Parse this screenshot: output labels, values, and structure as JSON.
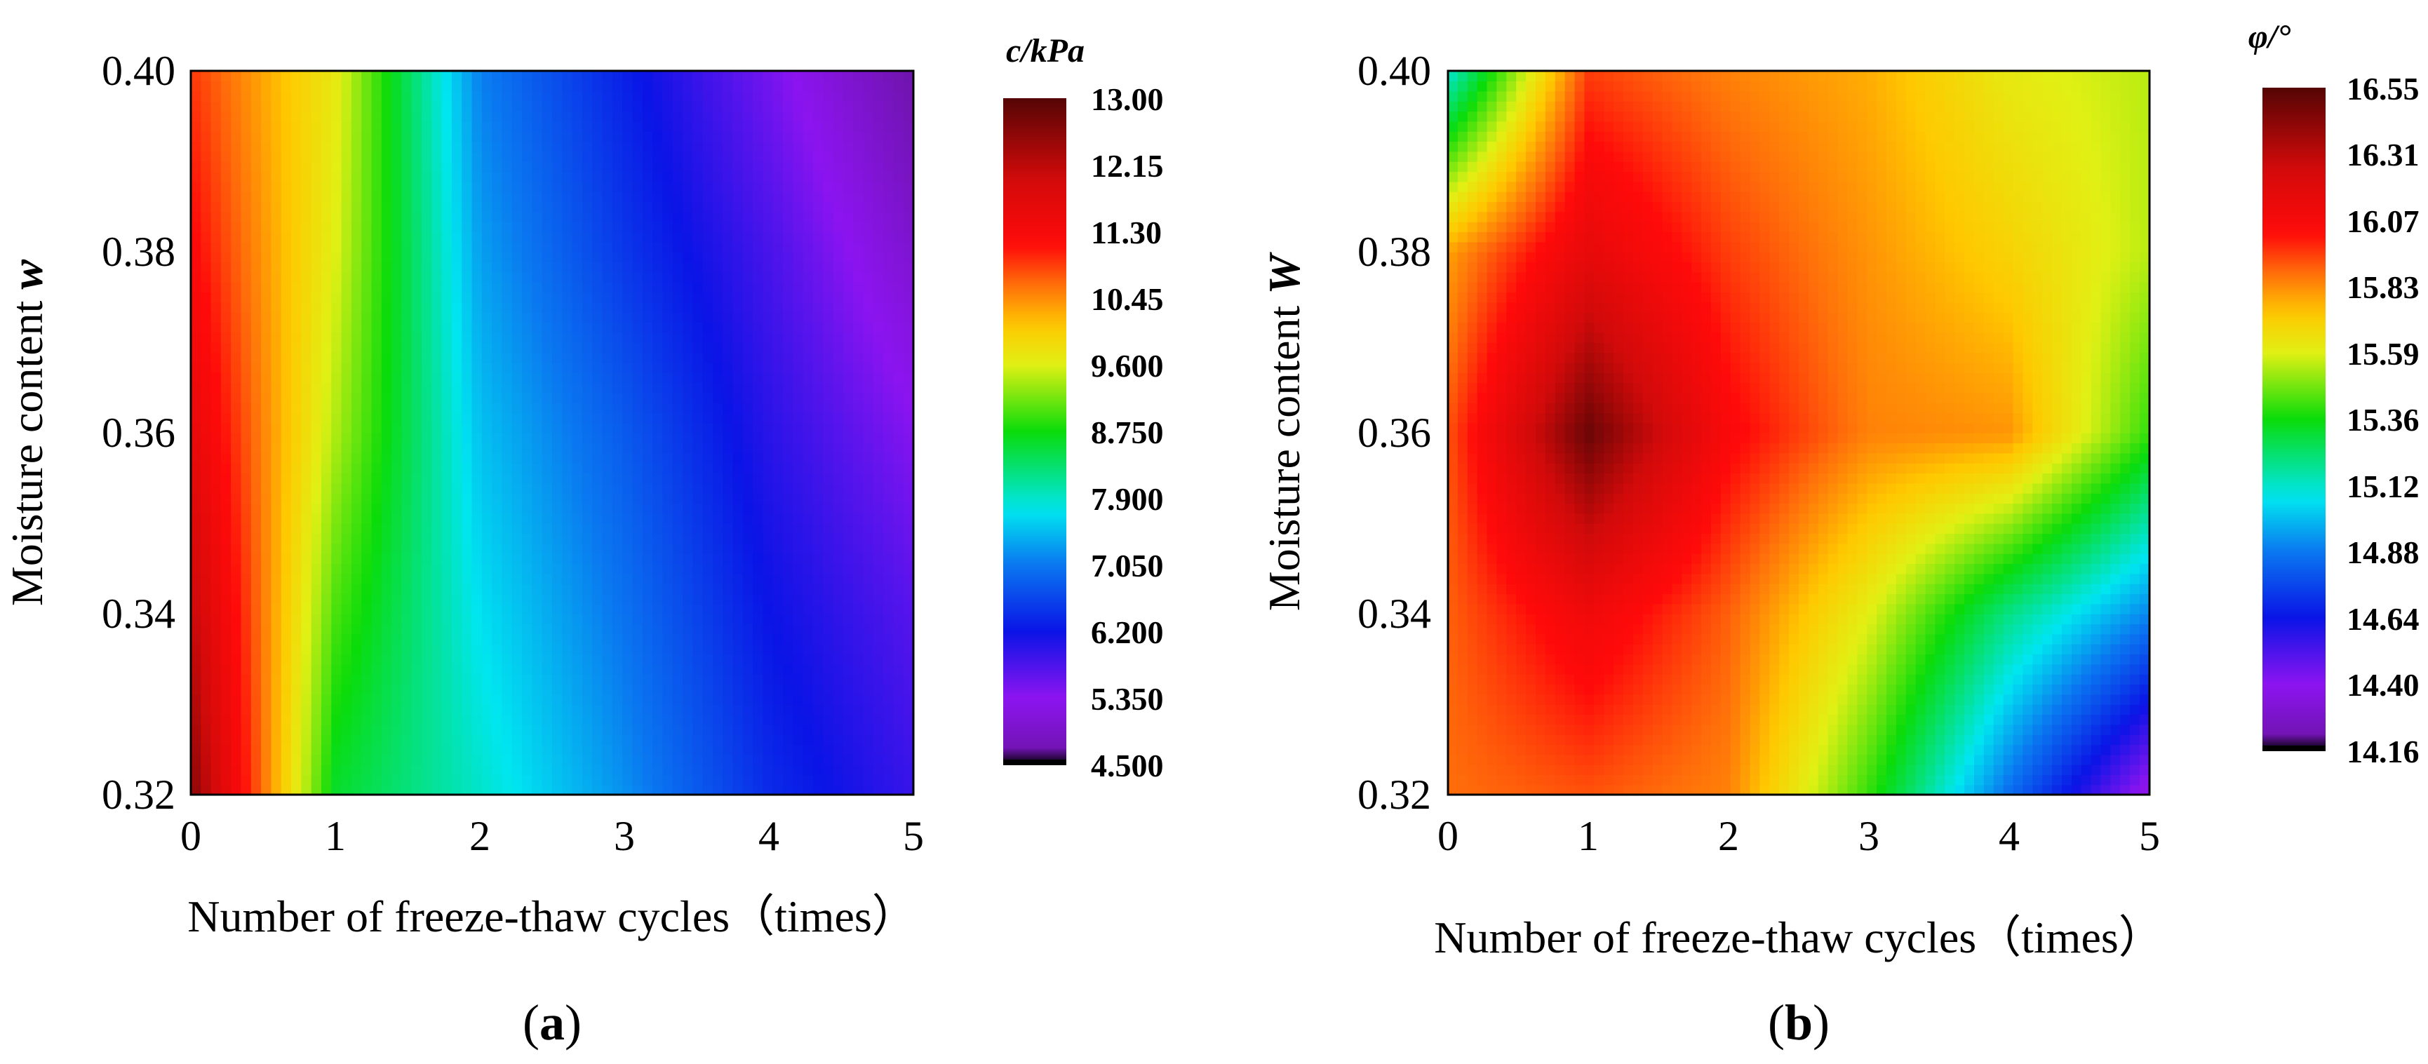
{
  "chart_data": [
    {
      "type": "contour",
      "panel": "a",
      "panel_label": [
        "(",
        "a",
        ")"
      ],
      "xlabel": "Number of freeze-thaw cycles（times）",
      "ylabel": [
        "Moisture content ",
        "w"
      ],
      "xlim": [
        0,
        5
      ],
      "ylim": [
        0.32,
        0.4
      ],
      "xticks": [
        "0",
        "1",
        "2",
        "3",
        "4",
        "5"
      ],
      "yticks": [
        "0.32",
        "0.34",
        "0.36",
        "0.38",
        "0.40"
      ],
      "x": [
        0,
        1,
        2,
        3,
        4,
        5
      ],
      "y": [
        0.32,
        0.34,
        0.36,
        0.38,
        0.4
      ],
      "z_rows_by_y": [
        [
          12.6,
          8.6,
          7.9,
          7.2,
          6.4,
          5.9
        ],
        [
          12.1,
          9.0,
          7.7,
          7.0,
          6.2,
          5.7
        ],
        [
          11.6,
          9.4,
          7.5,
          6.8,
          6.0,
          5.4
        ],
        [
          11.2,
          9.6,
          7.3,
          6.5,
          5.8,
          5.0
        ],
        [
          10.9,
          9.7,
          7.1,
          6.3,
          5.5,
          4.6
        ]
      ],
      "colorbar": {
        "title": "c/kPa",
        "labels": [
          "13.00",
          "12.15",
          "11.30",
          "10.45",
          "9.600",
          "8.750",
          "7.900",
          "7.050",
          "6.200",
          "5.350",
          "4.500"
        ],
        "range": [
          4.5,
          13.0
        ]
      }
    },
    {
      "type": "contour",
      "panel": "b",
      "panel_label": [
        "(",
        "b",
        ")"
      ],
      "xlabel": "Number of freeze-thaw cycles（times）",
      "ylabel": [
        "Moisture content ",
        "W"
      ],
      "xlim": [
        0,
        5
      ],
      "ylim": [
        0.32,
        0.4
      ],
      "xticks": [
        "0",
        "1",
        "2",
        "3",
        "4",
        "5"
      ],
      "yticks": [
        "0.32",
        "0.34",
        "0.36",
        "0.38",
        "0.40"
      ],
      "x": [
        0,
        1,
        2,
        3,
        4,
        5
      ],
      "y": [
        0.32,
        0.34,
        0.36,
        0.38,
        0.4
      ],
      "z_rows_by_y": [
        [
          15.88,
          15.92,
          15.85,
          15.4,
          14.85,
          14.35
        ],
        [
          15.9,
          16.1,
          15.9,
          15.6,
          15.2,
          14.9
        ],
        [
          15.92,
          16.5,
          16.05,
          15.85,
          15.82,
          15.4
        ],
        [
          15.8,
          16.15,
          15.95,
          15.82,
          15.7,
          15.55
        ],
        [
          15.1,
          15.95,
          15.85,
          15.78,
          15.62,
          15.55
        ]
      ],
      "colorbar": {
        "title": "φ/°",
        "labels": [
          "16.55",
          "16.31",
          "16.07",
          "15.83",
          "15.59",
          "15.36",
          "15.12",
          "14.88",
          "14.64",
          "14.40",
          "14.16"
        ],
        "range": [
          14.16,
          16.55
        ]
      }
    }
  ]
}
